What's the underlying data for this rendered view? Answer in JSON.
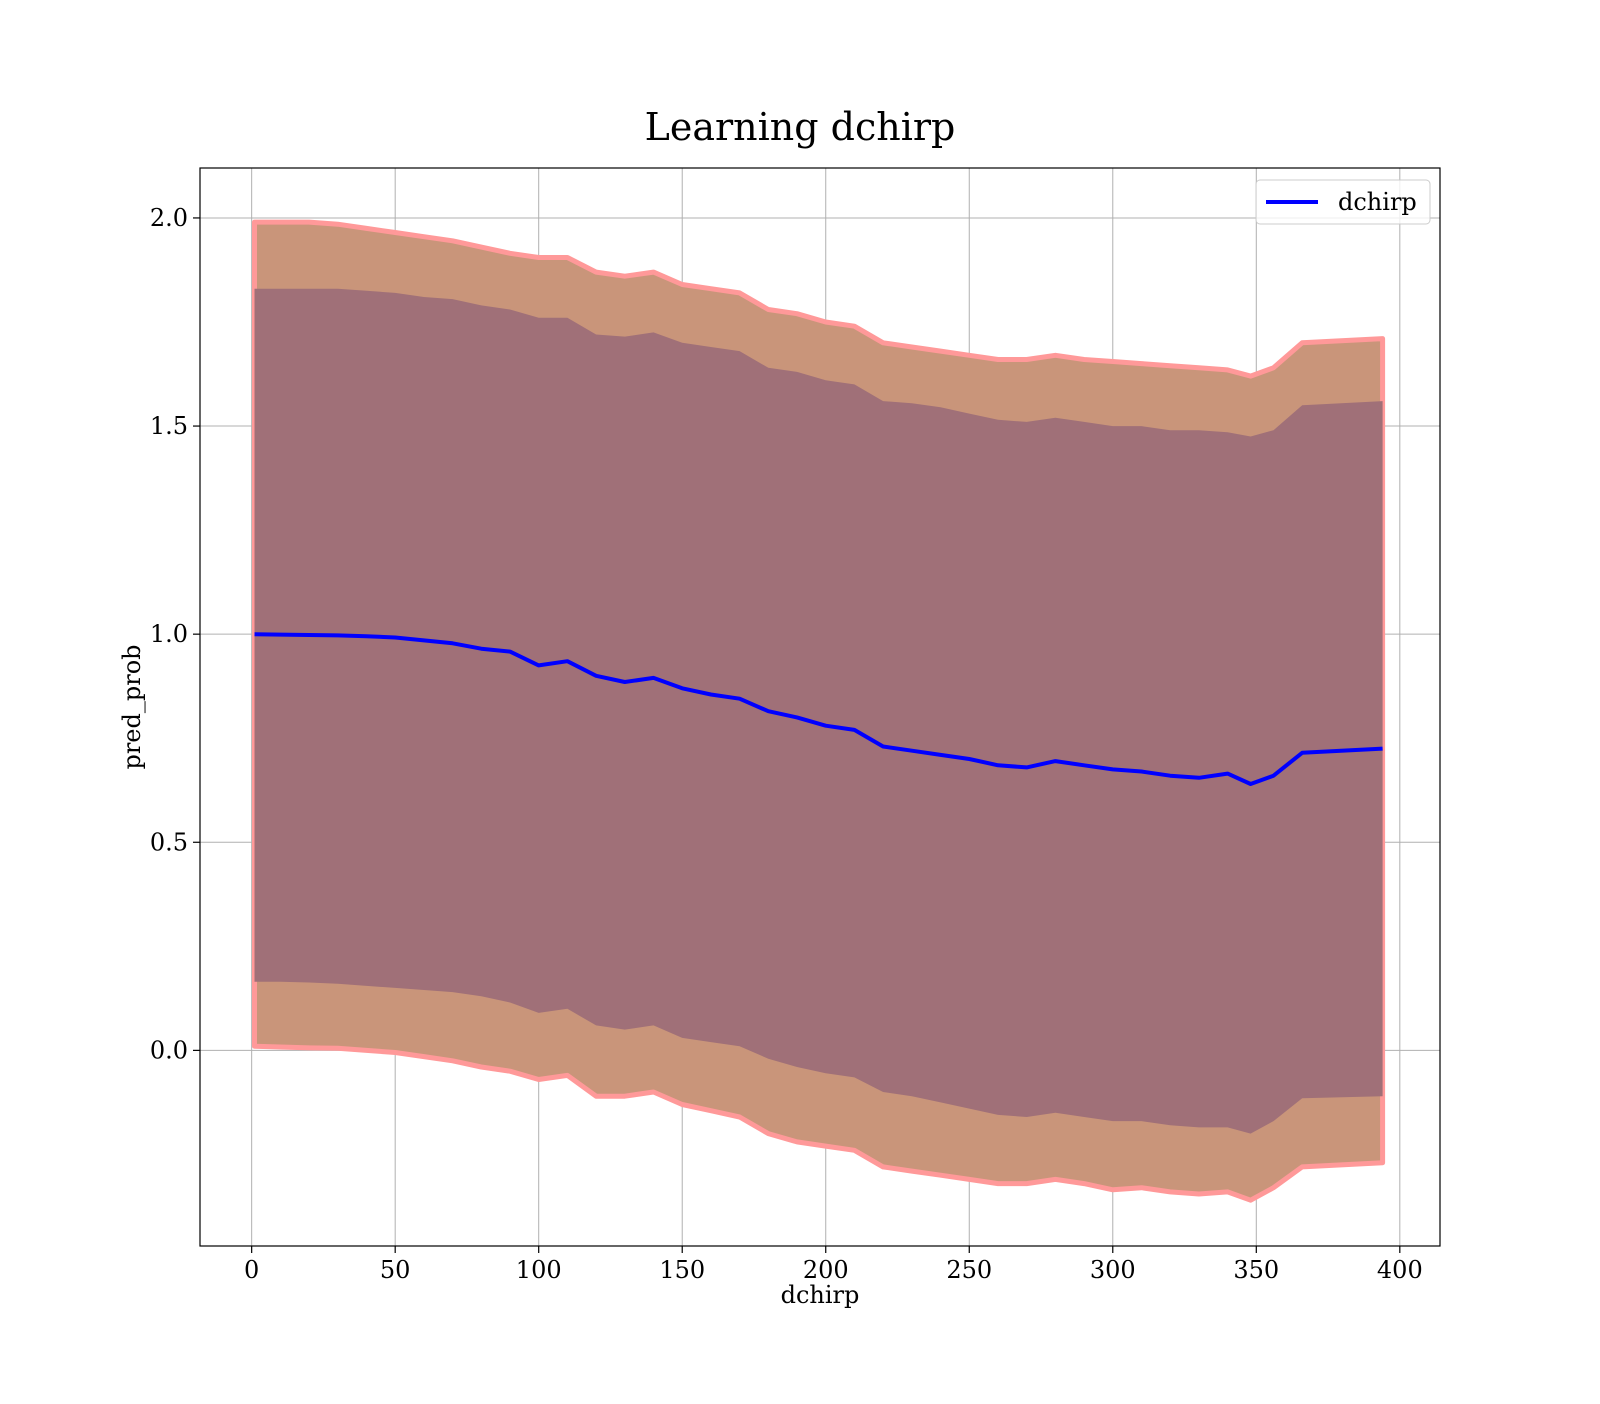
{
  "chart_data": {
    "type": "line",
    "title": "Learning dchirp",
    "xlabel": "dchirp",
    "ylabel": "pred_prob",
    "xlim": [
      -18,
      414
    ],
    "ylim": [
      -0.47,
      2.12
    ],
    "xticks": [
      0,
      50,
      100,
      150,
      200,
      250,
      300,
      350,
      400
    ],
    "yticks": [
      0.0,
      0.5,
      1.0,
      1.5,
      2.0
    ],
    "xtick_labels": [
      "0",
      "50",
      "100",
      "150",
      "200",
      "250",
      "300",
      "350",
      "400"
    ],
    "ytick_labels": [
      "0.0",
      "0.5",
      "1.0",
      "1.5",
      "2.0"
    ],
    "grid": true,
    "legend_position": "top-right",
    "series": [
      {
        "name": "dchirp",
        "color": "#0000ff",
        "x": [
          1,
          10,
          20,
          30,
          40,
          50,
          60,
          70,
          80,
          90,
          100,
          110,
          120,
          130,
          140,
          150,
          160,
          170,
          180,
          190,
          200,
          210,
          220,
          230,
          240,
          250,
          260,
          270,
          280,
          290,
          300,
          310,
          320,
          330,
          340,
          348,
          356,
          366,
          394
        ],
        "y": [
          1.0,
          0.999,
          0.998,
          0.997,
          0.995,
          0.992,
          0.985,
          0.978,
          0.965,
          0.958,
          0.925,
          0.935,
          0.9,
          0.885,
          0.895,
          0.87,
          0.855,
          0.845,
          0.815,
          0.8,
          0.78,
          0.77,
          0.73,
          0.72,
          0.71,
          0.7,
          0.685,
          0.68,
          0.695,
          0.685,
          0.675,
          0.67,
          0.66,
          0.655,
          0.665,
          0.64,
          0.66,
          0.715,
          0.725
        ]
      }
    ],
    "bands": [
      {
        "role": "outer",
        "fill": "#c9957a",
        "edge": "#ff9999",
        "upper": [
          1.99,
          1.99,
          1.99,
          1.985,
          1.975,
          1.965,
          1.955,
          1.945,
          1.93,
          1.915,
          1.905,
          1.905,
          1.87,
          1.86,
          1.87,
          1.84,
          1.83,
          1.82,
          1.78,
          1.77,
          1.75,
          1.74,
          1.7,
          1.69,
          1.68,
          1.67,
          1.66,
          1.66,
          1.67,
          1.66,
          1.655,
          1.65,
          1.645,
          1.64,
          1.635,
          1.62,
          1.64,
          1.7,
          1.71
        ],
        "lower": [
          0.01,
          0.008,
          0.006,
          0.005,
          0.0,
          -0.005,
          -0.015,
          -0.025,
          -0.04,
          -0.05,
          -0.07,
          -0.06,
          -0.11,
          -0.11,
          -0.1,
          -0.13,
          -0.145,
          -0.16,
          -0.2,
          -0.22,
          -0.23,
          -0.24,
          -0.28,
          -0.29,
          -0.3,
          -0.31,
          -0.32,
          -0.32,
          -0.31,
          -0.32,
          -0.335,
          -0.33,
          -0.34,
          -0.345,
          -0.34,
          -0.36,
          -0.33,
          -0.28,
          -0.27
        ]
      },
      {
        "role": "inner",
        "fill": "#a07078",
        "upper": [
          1.83,
          1.83,
          1.83,
          1.83,
          1.825,
          1.82,
          1.81,
          1.805,
          1.79,
          1.78,
          1.76,
          1.76,
          1.72,
          1.715,
          1.725,
          1.7,
          1.69,
          1.68,
          1.64,
          1.63,
          1.61,
          1.6,
          1.56,
          1.555,
          1.545,
          1.53,
          1.515,
          1.51,
          1.52,
          1.51,
          1.5,
          1.5,
          1.49,
          1.49,
          1.485,
          1.475,
          1.49,
          1.55,
          1.56
        ],
        "lower": [
          0.165,
          0.165,
          0.163,
          0.16,
          0.155,
          0.15,
          0.145,
          0.14,
          0.13,
          0.115,
          0.09,
          0.1,
          0.06,
          0.05,
          0.06,
          0.03,
          0.02,
          0.01,
          -0.02,
          -0.04,
          -0.055,
          -0.065,
          -0.1,
          -0.11,
          -0.125,
          -0.14,
          -0.155,
          -0.16,
          -0.15,
          -0.16,
          -0.17,
          -0.17,
          -0.18,
          -0.185,
          -0.185,
          -0.2,
          -0.17,
          -0.115,
          -0.11
        ]
      }
    ]
  }
}
